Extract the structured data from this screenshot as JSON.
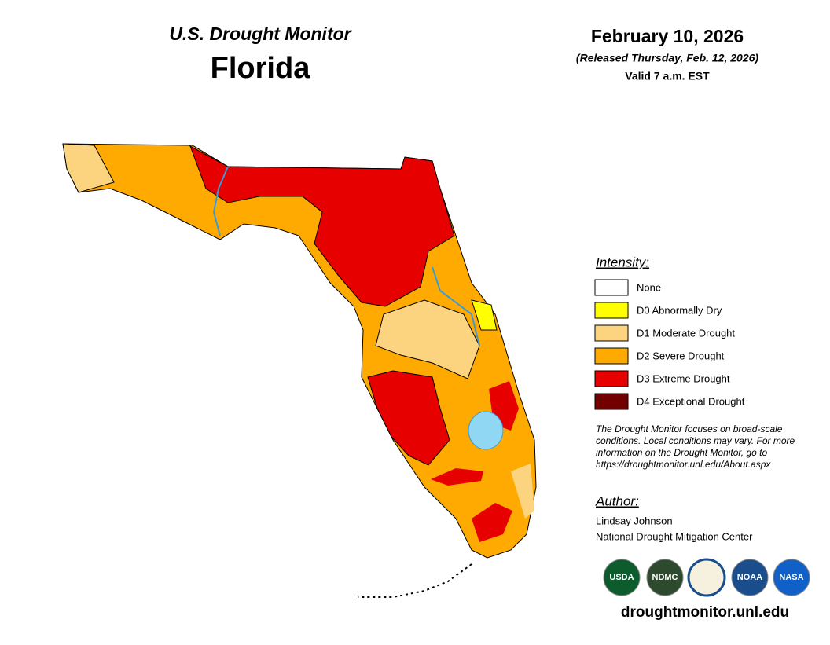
{
  "header": {
    "title": "U.S. Drought Monitor",
    "state": "Florida",
    "date": "February 10, 2026",
    "released": "(Released Thursday, Feb. 12, 2026)",
    "valid": "Valid 7 a.m. EST"
  },
  "legend": {
    "title": "Intensity:",
    "items": [
      {
        "label": "None",
        "color": "#ffffff"
      },
      {
        "label": "D0 Abnormally Dry",
        "color": "#ffff00"
      },
      {
        "label": "D1 Moderate Drought",
        "color": "#fcd37f"
      },
      {
        "label": "D2 Severe Drought",
        "color": "#ffaa00"
      },
      {
        "label": "D3 Extreme Drought",
        "color": "#e60000"
      },
      {
        "label": "D4 Exceptional Drought",
        "color": "#730000"
      }
    ]
  },
  "note": {
    "lines": [
      "The Drought Monitor focuses on broad-scale",
      "conditions. Local conditions may vary. For more",
      "information on the Drought Monitor, go to",
      "https://droughtmonitor.unl.edu/About.aspx"
    ]
  },
  "author": {
    "heading": "Author:",
    "name": "Lindsay Johnson",
    "organization": "National Drought Mitigation Center"
  },
  "logos": [
    "USDA",
    "NDMC",
    "NOAA",
    "NASA"
  ],
  "footer": {
    "url": "droughtmonitor.unl.edu"
  }
}
